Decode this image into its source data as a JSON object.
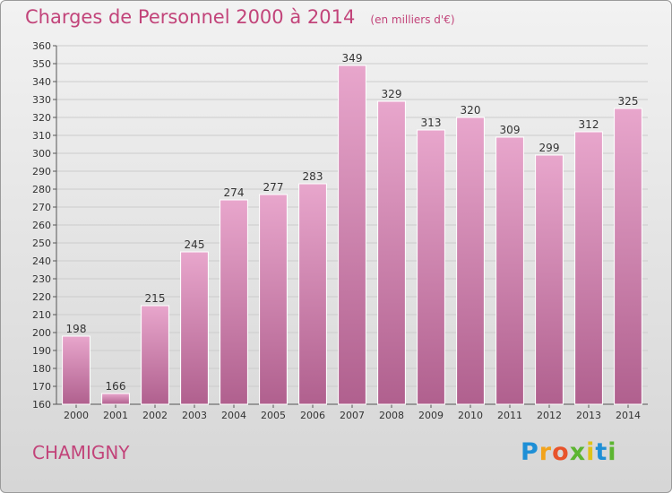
{
  "header": {
    "title": "Charges de Personnel 2000 à 2014",
    "subtitle": "(en milliers d'€)"
  },
  "footer": {
    "commune": "CHAMIGNY",
    "logo_letters": [
      "P",
      "r",
      "o",
      "x",
      "i",
      "t",
      "i"
    ],
    "logo_colors": [
      "#1e8fd6",
      "#f2a31c",
      "#e8532b",
      "#5cb531",
      "#e0c218",
      "#1e8fd6",
      "#5cb531"
    ]
  },
  "colors": {
    "bar_light": "#e8a6cc",
    "bar_dark": "#b0608e",
    "text": "#333333",
    "accent": "#c2447a",
    "grid": "#cccccc"
  },
  "chart_data": {
    "type": "bar",
    "categories": [
      "2000",
      "2001",
      "2002",
      "2003",
      "2004",
      "2005",
      "2006",
      "2007",
      "2008",
      "2009",
      "2010",
      "2011",
      "2012",
      "2013",
      "2014"
    ],
    "values": [
      198,
      166,
      215,
      245,
      274,
      277,
      283,
      349,
      329,
      313,
      320,
      309,
      299,
      312,
      325
    ],
    "ylim": [
      160,
      360
    ],
    "ytick_step": 10,
    "grid": true,
    "xlabel": "",
    "ylabel": ""
  }
}
